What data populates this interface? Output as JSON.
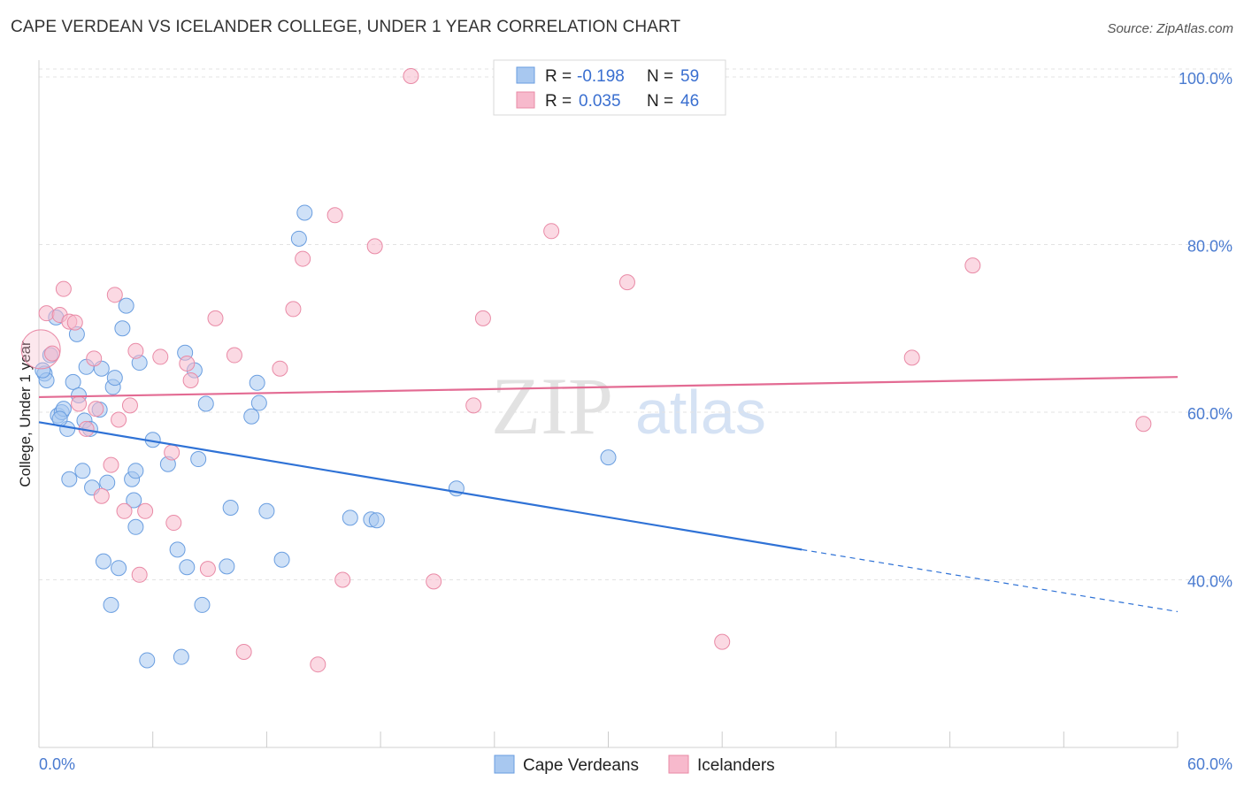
{
  "header": {
    "title": "CAPE VERDEAN VS ICELANDER COLLEGE, UNDER 1 YEAR CORRELATION CHART",
    "source": "Source: ZipAtlas.com"
  },
  "watermark": {
    "zip": "ZIP",
    "atlas": "atlas"
  },
  "legend": {
    "r_label": "R =",
    "n_label": "N =",
    "rows": [
      {
        "r": "-0.198",
        "n": "59",
        "color": "#a8c8f0"
      },
      {
        "r": "0.035",
        "n": "46",
        "color": "#f7b9cc"
      }
    ]
  },
  "bottom_legend": [
    {
      "label": "Cape Verdeans",
      "color": "#a8c8f0"
    },
    {
      "label": "Icelanders",
      "color": "#f7b9cc"
    }
  ],
  "chart_data": {
    "type": "scatter",
    "title": "CAPE VERDEAN VS ICELANDER COLLEGE, UNDER 1 YEAR CORRELATION CHART",
    "xlabel": "",
    "ylabel": "College, Under 1 year",
    "xlim": [
      0,
      60
    ],
    "ylim": [
      20,
      102
    ],
    "x_tick_labels": [
      "0.0%",
      "60.0%"
    ],
    "y_ticks": [
      40,
      60,
      80,
      100
    ],
    "y_tick_labels": [
      "40.0%",
      "60.0%",
      "80.0%",
      "100.0%"
    ],
    "series": [
      {
        "name": "Cape Verdeans",
        "color": "#a8c8f0",
        "stroke": "#6a9ee0",
        "trend": {
          "x0": 0,
          "y0": 58.8,
          "x1": 40.2,
          "y1": 43.6,
          "dash_to_x": 60,
          "dash_to_y": 36.2,
          "color": "#2f72d6"
        },
        "points": [
          [
            0.3,
            64.6
          ],
          [
            0.4,
            63.8
          ],
          [
            0.6,
            66.8
          ],
          [
            0.9,
            71.3
          ],
          [
            1.0,
            59.6
          ],
          [
            1.2,
            60.0
          ],
          [
            1.3,
            60.4
          ],
          [
            1.5,
            58.0
          ],
          [
            1.6,
            52.0
          ],
          [
            1.8,
            63.6
          ],
          [
            2.0,
            69.3
          ],
          [
            2.1,
            62.0
          ],
          [
            2.3,
            53.0
          ],
          [
            2.4,
            59.0
          ],
          [
            2.5,
            65.4
          ],
          [
            2.7,
            58.0
          ],
          [
            2.8,
            51.0
          ],
          [
            3.2,
            60.3
          ],
          [
            3.3,
            65.2
          ],
          [
            3.4,
            42.2
          ],
          [
            3.6,
            51.6
          ],
          [
            3.8,
            37.0
          ],
          [
            3.9,
            63.0
          ],
          [
            4.0,
            64.1
          ],
          [
            4.2,
            41.4
          ],
          [
            4.4,
            70.0
          ],
          [
            4.6,
            72.7
          ],
          [
            4.9,
            52.0
          ],
          [
            5.0,
            49.5
          ],
          [
            5.1,
            53.0
          ],
          [
            5.1,
            46.3
          ],
          [
            5.3,
            65.9
          ],
          [
            5.7,
            30.4
          ],
          [
            6.0,
            56.7
          ],
          [
            6.8,
            53.8
          ],
          [
            7.3,
            43.6
          ],
          [
            7.5,
            30.8
          ],
          [
            7.8,
            41.5
          ],
          [
            8.2,
            65.0
          ],
          [
            8.4,
            54.4
          ],
          [
            8.6,
            37.0
          ],
          [
            8.8,
            61.0
          ],
          [
            9.9,
            41.6
          ],
          [
            10.1,
            48.6
          ],
          [
            11.2,
            59.5
          ],
          [
            11.5,
            63.5
          ],
          [
            11.6,
            61.1
          ],
          [
            12.0,
            48.2
          ],
          [
            12.8,
            42.4
          ],
          [
            13.7,
            80.7
          ],
          [
            14.0,
            83.8
          ],
          [
            16.4,
            47.4
          ],
          [
            17.5,
            47.2
          ],
          [
            17.8,
            47.1
          ],
          [
            22.0,
            50.9
          ],
          [
            30.0,
            54.6
          ],
          [
            0.2,
            65.0
          ],
          [
            1.1,
            59.2
          ],
          [
            7.7,
            67.1
          ]
        ]
      },
      {
        "name": "Icelanders",
        "color": "#f7b9cc",
        "stroke": "#e98aa6",
        "trend": {
          "x0": 0,
          "y0": 61.8,
          "x1": 60,
          "y1": 64.2,
          "color": "#e36b93"
        },
        "points": [
          [
            0.1,
            67.5
          ],
          [
            0.4,
            71.8
          ],
          [
            0.7,
            67.0
          ],
          [
            1.1,
            71.6
          ],
          [
            1.3,
            74.7
          ],
          [
            1.6,
            70.8
          ],
          [
            1.9,
            70.7
          ],
          [
            2.1,
            61.0
          ],
          [
            2.5,
            58.0
          ],
          [
            2.9,
            66.4
          ],
          [
            3.0,
            60.4
          ],
          [
            3.3,
            50.0
          ],
          [
            3.8,
            53.7
          ],
          [
            4.0,
            74.0
          ],
          [
            4.2,
            59.1
          ],
          [
            4.5,
            48.2
          ],
          [
            4.8,
            60.8
          ],
          [
            5.1,
            67.3
          ],
          [
            5.3,
            40.6
          ],
          [
            5.6,
            48.2
          ],
          [
            6.4,
            66.6
          ],
          [
            7.0,
            55.2
          ],
          [
            7.1,
            46.8
          ],
          [
            7.8,
            65.8
          ],
          [
            8.0,
            63.8
          ],
          [
            8.9,
            41.3
          ],
          [
            9.3,
            71.2
          ],
          [
            10.3,
            66.8
          ],
          [
            10.8,
            31.4
          ],
          [
            12.7,
            65.2
          ],
          [
            13.4,
            72.3
          ],
          [
            13.9,
            78.3
          ],
          [
            14.7,
            29.9
          ],
          [
            15.6,
            83.5
          ],
          [
            16.0,
            40.0
          ],
          [
            17.7,
            79.8
          ],
          [
            19.6,
            100.1
          ],
          [
            20.8,
            39.8
          ],
          [
            22.9,
            60.8
          ],
          [
            23.4,
            71.2
          ],
          [
            27.0,
            81.6
          ],
          [
            31.0,
            75.5
          ],
          [
            36.0,
            32.6
          ],
          [
            46.0,
            66.5
          ],
          [
            49.2,
            77.5
          ],
          [
            58.2,
            58.6
          ]
        ]
      }
    ]
  }
}
